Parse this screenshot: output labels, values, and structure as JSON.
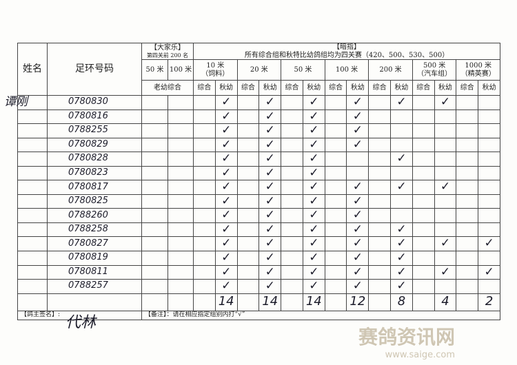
{
  "header": {
    "name": "姓名",
    "ring": "足环号码",
    "group_a": {
      "title": "【大家乐】",
      "subtitle": "第四关前 200 名",
      "d50": "50 米",
      "d100": "100 米",
      "category": "老幼综合"
    },
    "group_b": {
      "title": "【暗指】",
      "subtitle": "所有综合组和秋特比幼鸽组均为四关赛（420、500、530、500）",
      "distances": [
        {
          "label": "10 米",
          "note": "（饲料）"
        },
        {
          "label": "20 米"
        },
        {
          "label": "50 米"
        },
        {
          "label": "100 米"
        },
        {
          "label": "200 米"
        },
        {
          "label": "500 米",
          "note": "（汽车组）"
        },
        {
          "label": "1000 米",
          "note": "（精英赛）"
        }
      ],
      "sub": [
        "综合",
        "秋幼"
      ]
    }
  },
  "owner": "谭刚",
  "rows": [
    {
      "ring": "0780830",
      "marks": [
        null,
        null,
        null,
        "✓",
        null,
        "✓",
        null,
        "✓",
        null,
        "✓",
        null,
        "✓",
        null,
        "✓",
        null,
        null
      ]
    },
    {
      "ring": "0780816",
      "marks": [
        null,
        null,
        null,
        "✓",
        null,
        "✓",
        null,
        "✓",
        null,
        "✓",
        null,
        null,
        null,
        null,
        null,
        null
      ]
    },
    {
      "ring": "0788255",
      "marks": [
        null,
        null,
        null,
        "✓",
        null,
        "✓",
        null,
        "✓",
        null,
        "✓",
        null,
        null,
        null,
        null,
        null,
        null
      ]
    },
    {
      "ring": "0780829",
      "marks": [
        null,
        null,
        null,
        "✓",
        null,
        "✓",
        null,
        "✓",
        null,
        "✓",
        null,
        null,
        null,
        null,
        null,
        null
      ]
    },
    {
      "ring": "0780828",
      "marks": [
        null,
        null,
        null,
        "✓",
        null,
        "✓",
        null,
        "✓",
        null,
        null,
        null,
        "✓",
        null,
        null,
        null,
        null
      ]
    },
    {
      "ring": "0780823",
      "marks": [
        null,
        null,
        null,
        "✓",
        null,
        "✓",
        null,
        "✓",
        null,
        null,
        null,
        null,
        null,
        null,
        null,
        null
      ]
    },
    {
      "ring": "0780817",
      "marks": [
        null,
        null,
        null,
        "✓",
        null,
        "✓",
        null,
        "✓",
        null,
        "✓",
        null,
        "✓",
        null,
        "✓",
        null,
        null
      ]
    },
    {
      "ring": "0780825",
      "marks": [
        null,
        null,
        null,
        "✓",
        null,
        "✓",
        null,
        "✓",
        null,
        "✓",
        null,
        null,
        null,
        null,
        null,
        null
      ]
    },
    {
      "ring": "0788260",
      "marks": [
        null,
        null,
        null,
        "✓",
        null,
        "✓",
        null,
        "✓",
        null,
        "✓",
        null,
        null,
        null,
        null,
        null,
        null
      ]
    },
    {
      "ring": "0788258",
      "marks": [
        null,
        null,
        null,
        "✓",
        null,
        "✓",
        null,
        "✓",
        null,
        "✓",
        null,
        "✓",
        null,
        null,
        null,
        null
      ]
    },
    {
      "ring": "0780827",
      "marks": [
        null,
        null,
        null,
        "✓",
        null,
        "✓",
        null,
        "✓",
        null,
        "✓",
        null,
        "✓",
        null,
        "✓",
        null,
        "✓"
      ]
    },
    {
      "ring": "0780819",
      "marks": [
        null,
        null,
        null,
        "✓",
        null,
        "✓",
        null,
        "✓",
        null,
        "✓",
        null,
        "✓",
        null,
        null,
        null,
        null
      ]
    },
    {
      "ring": "0780811",
      "marks": [
        null,
        null,
        null,
        "✓",
        null,
        "✓",
        null,
        "✓",
        null,
        "✓",
        null,
        "✓",
        null,
        "✓",
        null,
        "✓"
      ]
    },
    {
      "ring": "0788257",
      "marks": [
        null,
        null,
        null,
        "✓",
        null,
        "✓",
        null,
        "✓",
        null,
        "✓",
        null,
        "✓",
        null,
        null,
        null,
        null
      ]
    }
  ],
  "totals": [
    null,
    null,
    null,
    "14",
    null,
    "14",
    null,
    "14",
    null,
    "12",
    null,
    "8",
    null,
    "4",
    null,
    "2"
  ],
  "footer": {
    "sign_label": "【鸽主签名】:",
    "signature": "代林",
    "note": "【备注】：请在相应指定组别内打“√”"
  },
  "watermark": {
    "name": "赛鸽资讯网",
    "url": "www.saige.com"
  }
}
